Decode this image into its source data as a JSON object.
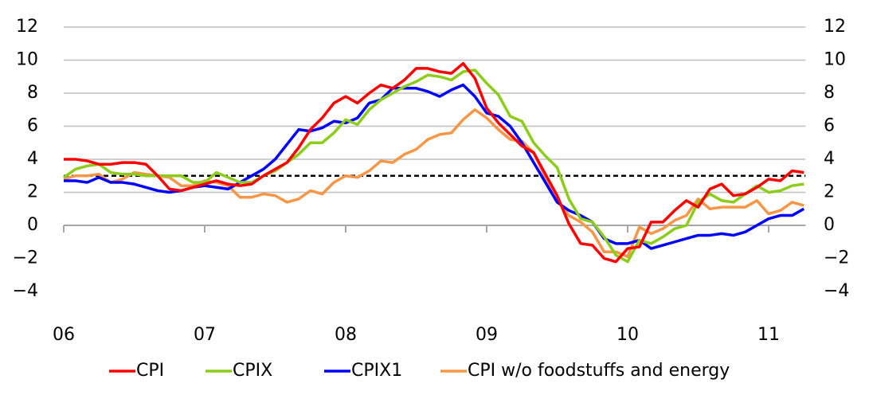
{
  "chart_data": {
    "type": "line",
    "categories": [
      "06",
      null,
      null,
      null,
      null,
      null,
      null,
      null,
      null,
      null,
      null,
      null,
      "07",
      null,
      null,
      null,
      null,
      null,
      null,
      null,
      null,
      null,
      null,
      null,
      "08",
      null,
      null,
      null,
      null,
      null,
      null,
      null,
      null,
      null,
      null,
      null,
      "09",
      null,
      null,
      null,
      null,
      null,
      null,
      null,
      null,
      null,
      null,
      null,
      "10",
      null,
      null,
      null,
      null,
      null,
      null,
      null,
      null,
      null,
      null,
      null,
      "11",
      null,
      null,
      null
    ],
    "series": [
      {
        "name": "CPI",
        "color": "#ff0000",
        "values": [
          4.0,
          4.0,
          3.9,
          3.7,
          3.7,
          3.8,
          3.8,
          3.7,
          3.0,
          2.2,
          2.1,
          2.3,
          2.5,
          2.7,
          2.5,
          2.4,
          2.5,
          3.0,
          3.4,
          3.8,
          4.7,
          5.8,
          6.5,
          7.4,
          7.8,
          7.4,
          8.0,
          8.5,
          8.3,
          8.8,
          9.5,
          9.5,
          9.3,
          9.2,
          9.8,
          8.9,
          7.1,
          6.2,
          5.5,
          4.8,
          4.4,
          3.1,
          1.8,
          0.1,
          -1.1,
          -1.2,
          -2.0,
          -2.2,
          -1.4,
          -1.3,
          0.2,
          0.2,
          0.9,
          1.5,
          1.1,
          2.2,
          2.5,
          1.8,
          1.9,
          2.3,
          2.8,
          2.7,
          3.3,
          3.2
        ]
      },
      {
        "name": "CPIX",
        "color": "#8ccc1a",
        "values": [
          2.9,
          3.4,
          3.6,
          3.7,
          3.2,
          3.1,
          3.1,
          3.0,
          3.0,
          3.0,
          3.0,
          2.6,
          2.6,
          3.2,
          2.9,
          2.6,
          2.6,
          3.0,
          3.3,
          3.8,
          4.3,
          5.0,
          5.0,
          5.6,
          6.4,
          6.1,
          7.0,
          7.6,
          8.0,
          8.4,
          8.7,
          9.1,
          9.0,
          8.8,
          9.3,
          9.4,
          8.6,
          7.9,
          6.6,
          6.3,
          5.0,
          4.2,
          3.5,
          1.6,
          0.4,
          0.2,
          -0.7,
          -1.8,
          -2.2,
          -0.9,
          -1.1,
          -0.7,
          -0.2,
          0.0,
          1.4,
          1.9,
          1.5,
          1.4,
          1.9,
          2.4,
          2.0,
          2.1,
          2.4,
          2.5
        ]
      },
      {
        "name": "CPIX1",
        "color": "#0000ff",
        "values": [
          2.7,
          2.7,
          2.6,
          2.9,
          2.6,
          2.6,
          2.5,
          2.3,
          2.1,
          2.0,
          2.1,
          2.3,
          2.4,
          2.3,
          2.2,
          2.6,
          3.0,
          3.4,
          4.0,
          4.9,
          5.8,
          5.7,
          5.9,
          6.3,
          6.2,
          6.5,
          7.4,
          7.6,
          8.3,
          8.3,
          8.3,
          8.1,
          7.8,
          8.2,
          8.5,
          7.8,
          6.8,
          6.6,
          6.0,
          5.0,
          3.8,
          2.6,
          1.4,
          0.9,
          0.6,
          0.2,
          -0.8,
          -1.1,
          -1.1,
          -0.9,
          -1.4,
          -1.2,
          -1.0,
          -0.8,
          -0.6,
          -0.6,
          -0.5,
          -0.6,
          -0.4,
          0.0,
          0.4,
          0.6,
          0.6,
          1.0
        ]
      },
      {
        "name": "CPI w/o foodstuffs and energy",
        "color": "#f79646",
        "values": [
          2.8,
          3.0,
          3.0,
          3.1,
          2.6,
          2.8,
          3.2,
          3.1,
          3.0,
          2.9,
          2.4,
          2.4,
          2.7,
          2.6,
          2.4,
          1.7,
          1.7,
          1.9,
          1.8,
          1.4,
          1.6,
          2.1,
          1.9,
          2.6,
          3.0,
          2.9,
          3.3,
          3.9,
          3.8,
          4.3,
          4.6,
          5.2,
          5.5,
          5.6,
          6.4,
          7.0,
          6.5,
          5.8,
          5.2,
          5.1,
          4.4,
          2.9,
          1.5,
          0.6,
          0.2,
          -0.4,
          -1.6,
          -1.6,
          -1.9,
          -0.1,
          -0.5,
          -0.2,
          0.3,
          0.6,
          1.6,
          1.0,
          1.1,
          1.1,
          1.1,
          1.5,
          0.7,
          0.9,
          1.4,
          1.2
        ]
      }
    ],
    "reference_line": 3,
    "ylim": [
      -4,
      12
    ],
    "yticks": [
      {
        "value": -4,
        "label": "−4"
      },
      {
        "value": -2,
        "label": "−2"
      },
      0,
      2,
      4,
      6,
      8,
      10,
      12
    ],
    "y2lim": [
      -4,
      12
    ],
    "y2ticks": [
      {
        "value": -4,
        "label": "−4"
      },
      {
        "value": -2,
        "label": "−2"
      },
      0,
      2,
      4,
      6,
      8,
      10,
      12
    ],
    "grid": true,
    "legend": "bottom"
  }
}
